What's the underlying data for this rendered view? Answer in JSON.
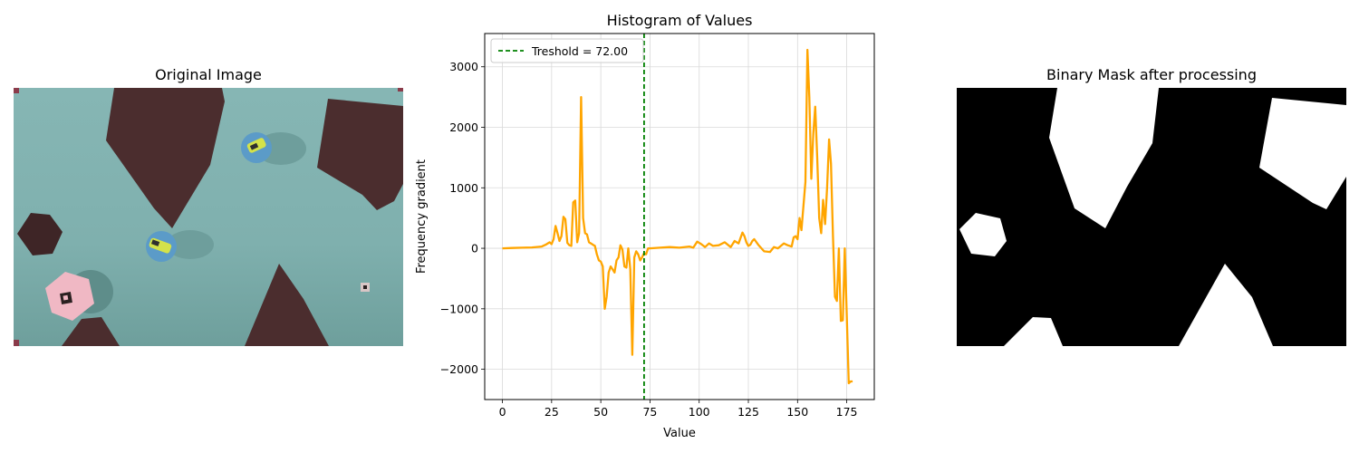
{
  "panels": {
    "left_title": "Original Image",
    "middle_title": "Histogram of Values",
    "right_title": "Binary Mask after processing"
  },
  "colors": {
    "line": "#ffa500",
    "threshold": "#008000",
    "water": "#7fb2b0",
    "rock": "#4a2c2c",
    "boat": "#5b9bc8",
    "pink_box": "#f2b9c4",
    "grid": "#d9d9d9"
  },
  "icons": {
    "boat_top": "boat-icon",
    "boat_mid": "boat-icon",
    "marker_box": "marker-box-icon"
  },
  "chart_data": {
    "type": "line",
    "title": "Histogram of Values",
    "xlabel": "Value",
    "ylabel": "Frequency gradient",
    "xlim": [
      -9,
      189
    ],
    "ylim": [
      -2500,
      3550
    ],
    "xticks": [
      0,
      25,
      50,
      75,
      100,
      125,
      150,
      175
    ],
    "yticks": [
      -2000,
      -1000,
      0,
      1000,
      2000,
      3000
    ],
    "ytick_labels": [
      "−2000",
      "−1000",
      "0",
      "1000",
      "2000",
      "3000"
    ],
    "grid": true,
    "legend_position": "top-left",
    "threshold": {
      "value": 72,
      "label": "Treshold = 72.00"
    },
    "series": [
      {
        "x": [
          0,
          5,
          10,
          15,
          20,
          22,
          24,
          25,
          26,
          27,
          28,
          29,
          30,
          31,
          32,
          33,
          34,
          35,
          36,
          37,
          38,
          39,
          40,
          41,
          42,
          43,
          44,
          45,
          46,
          47,
          48,
          49,
          50,
          51,
          52,
          53,
          54,
          55,
          56,
          57,
          58,
          59,
          60,
          61,
          62,
          63,
          64,
          65,
          66,
          67,
          68,
          69,
          70,
          71,
          72,
          73,
          74,
          75,
          80,
          85,
          90,
          95,
          97,
          99,
          101,
          103,
          105,
          107,
          110,
          113,
          116,
          118,
          120,
          122,
          123,
          124,
          125,
          126,
          127,
          128,
          130,
          133,
          136,
          138,
          140,
          143,
          145,
          147,
          148,
          149,
          150,
          151,
          152,
          153,
          154,
          155,
          156,
          157,
          158,
          159,
          160,
          161,
          162,
          163,
          164,
          165,
          166,
          167,
          168,
          169,
          170,
          171,
          172,
          173,
          174,
          175,
          176,
          177,
          178
        ],
        "values": [
          0,
          5,
          10,
          15,
          30,
          60,
          100,
          70,
          150,
          370,
          250,
          120,
          200,
          520,
          480,
          90,
          50,
          40,
          760,
          790,
          100,
          250,
          2500,
          500,
          250,
          230,
          100,
          80,
          60,
          40,
          -100,
          -200,
          -220,
          -300,
          -1000,
          -800,
          -400,
          -300,
          -350,
          -400,
          -200,
          -150,
          50,
          -20,
          -300,
          -320,
          0,
          -350,
          -1760,
          -150,
          -50,
          -100,
          -200,
          -150,
          -80,
          -100,
          0,
          0,
          10,
          20,
          10,
          30,
          10,
          110,
          70,
          20,
          80,
          40,
          50,
          100,
          20,
          120,
          80,
          260,
          200,
          100,
          40,
          60,
          120,
          150,
          60,
          -50,
          -60,
          20,
          0,
          80,
          50,
          30,
          180,
          200,
          150,
          500,
          300,
          700,
          1100,
          3280,
          2500,
          1150,
          1900,
          2340,
          1500,
          500,
          250,
          800,
          400,
          1000,
          1800,
          1400,
          200,
          -800,
          -870,
          0,
          -1200,
          -1190,
          0,
          -1100,
          -2230,
          -2200,
          -2200
        ]
      }
    ]
  }
}
